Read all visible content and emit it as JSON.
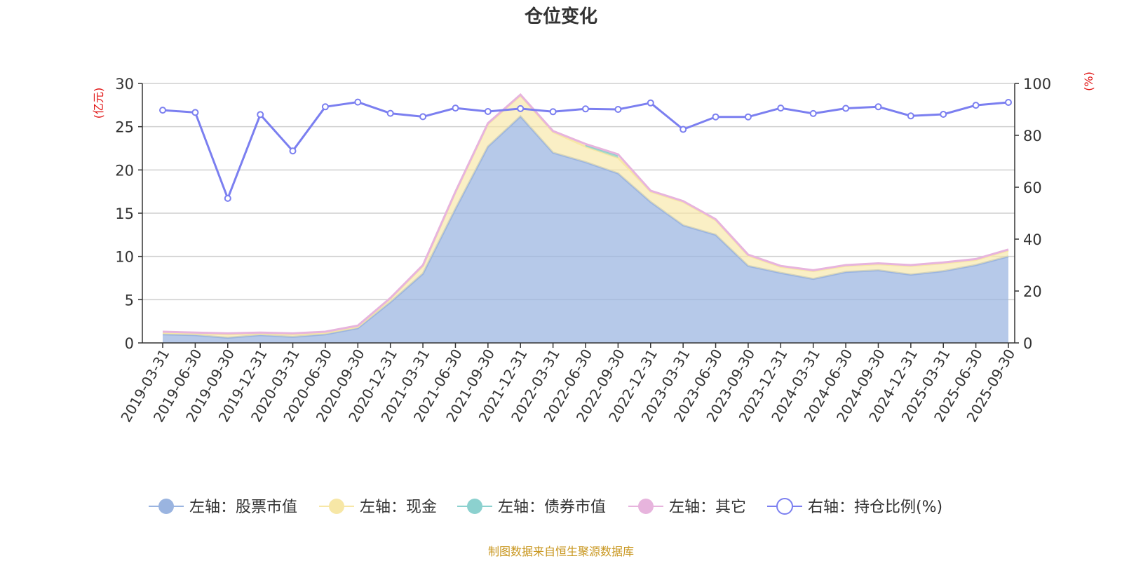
{
  "chart_data": {
    "type": "area",
    "title": "仓位变化",
    "left_axis_label": "(亿元)",
    "right_axis_label": "(%)",
    "left_ylim": [
      0,
      30
    ],
    "left_yticks": [
      0,
      5,
      10,
      15,
      20,
      25,
      30
    ],
    "right_ylim": [
      0,
      100
    ],
    "right_yticks": [
      0,
      20,
      40,
      60,
      80,
      100
    ],
    "grid": true,
    "legend_position": "bottom",
    "categories": [
      "2019-03-31",
      "2019-06-30",
      "2019-09-30",
      "2019-12-31",
      "2020-03-31",
      "2020-06-30",
      "2020-09-30",
      "2020-12-31",
      "2021-03-31",
      "2021-06-30",
      "2021-09-30",
      "2021-12-31",
      "2022-03-31",
      "2022-06-30",
      "2022-09-30",
      "2022-12-31",
      "2023-03-31",
      "2023-06-30",
      "2023-09-30",
      "2023-12-31",
      "2024-03-31",
      "2024-06-30",
      "2024-09-30",
      "2024-12-31",
      "2025-03-31",
      "2025-06-30",
      "2025-09-30"
    ],
    "series": [
      {
        "name": "左轴：股票市值",
        "axis": "left",
        "color": "#9ab4e0",
        "values": [
          1.0,
          0.9,
          0.6,
          0.9,
          0.7,
          1.0,
          1.7,
          4.7,
          8.0,
          15.5,
          22.7,
          26.2,
          22.0,
          20.9,
          19.6,
          16.3,
          13.6,
          12.5,
          8.9,
          8.1,
          7.4,
          8.2,
          8.4,
          7.9,
          8.3,
          9.0,
          10.0
        ]
      },
      {
        "name": "左轴：现金",
        "axis": "left",
        "color": "#f7e7a6",
        "values": [
          0.2,
          0.2,
          0.4,
          0.2,
          0.3,
          0.2,
          0.2,
          0.4,
          0.9,
          1.9,
          2.6,
          2.4,
          2.4,
          1.8,
          1.8,
          1.2,
          2.7,
          1.7,
          1.2,
          0.7,
          0.9,
          0.7,
          0.7,
          1.0,
          0.9,
          0.6,
          0.7
        ]
      },
      {
        "name": "左轴：债券市值",
        "axis": "left",
        "color": "#8cd1cf",
        "values": [
          0,
          0,
          0,
          0,
          0,
          0,
          0,
          0,
          0,
          0,
          0,
          0,
          0,
          0.2,
          0.3,
          0,
          0,
          0,
          0,
          0,
          0,
          0,
          0,
          0,
          0,
          0,
          0
        ]
      },
      {
        "name": "左轴：其它",
        "axis": "left",
        "color": "#e7b4dd",
        "values": [
          0.1,
          0.1,
          0.1,
          0.1,
          0.1,
          0.1,
          0.1,
          0.1,
          0.1,
          0.1,
          0.1,
          0.1,
          0.1,
          0.1,
          0.1,
          0.1,
          0.1,
          0.1,
          0.1,
          0.1,
          0.1,
          0.1,
          0.1,
          0.1,
          0.1,
          0.1,
          0.1
        ]
      },
      {
        "name": "右轴：持仓比例(%)",
        "axis": "right",
        "color": "#7b7ff0",
        "values": [
          89.7,
          88.8,
          55.7,
          88.0,
          74.0,
          91.0,
          92.8,
          88.5,
          87.2,
          90.5,
          89.2,
          90.3,
          89.1,
          90.2,
          90.0,
          92.5,
          82.3,
          87.1,
          87.1,
          90.5,
          88.4,
          90.4,
          91.0,
          87.5,
          88.1,
          91.6,
          92.7
        ]
      }
    ]
  },
  "footer": {
    "source": "制图数据来自恒生聚源数据库",
    "source_color": "#c8961e"
  }
}
